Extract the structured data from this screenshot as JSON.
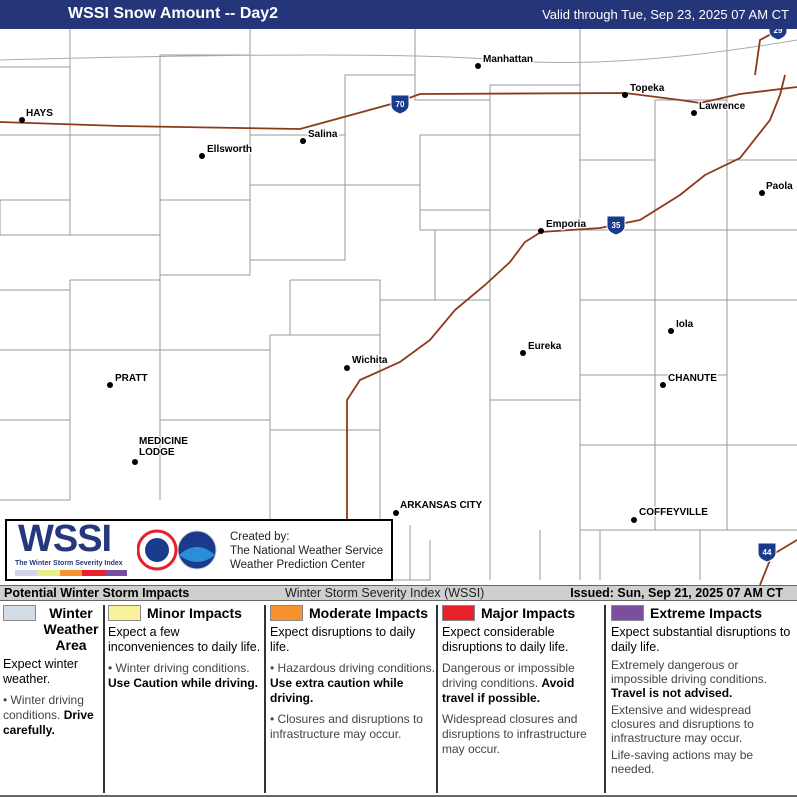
{
  "header": {
    "title": "WSSI Snow Amount -- Day2",
    "valid": "Valid through Tue, Sep 23, 2025 07 AM CT"
  },
  "map": {
    "cities": [
      "HAYS",
      "Ellsworth",
      "Salina",
      "Manhattan",
      "Topeka",
      "Lawrence",
      "Paola",
      "Emporia",
      "Iola",
      "Eureka",
      "Wichita",
      "PRATT",
      "CHANUTE",
      "MEDICINE LODGE",
      "ARKANSAS CITY",
      "COFFEYVILLE"
    ],
    "interstates": [
      "70",
      "35",
      "29",
      "44"
    ],
    "highway_color": "#8b3a1a"
  },
  "logo": {
    "wssi": "WSSI",
    "subtitle": "The Winter Storm Severity Index",
    "created_by": "Created by:",
    "org1": "The National Weather Service",
    "org2": "Weather Prediction Center"
  },
  "legend_bar": {
    "title": "Potential Winter Storm Impacts",
    "index": "Winter Storm Severity Index (WSSI)",
    "issued": "Issued: Sun, Sep 21, 2025 07 AM CT"
  },
  "legend": [
    {
      "name": "Winter Weather Area",
      "color": "#d4dde6",
      "desc": "Expect winter weather.",
      "bullets": [
        {
          "text": "Winter driving conditions. ",
          "bold": "Drive carefully."
        }
      ]
    },
    {
      "name": "Minor Impacts",
      "color": "#f8f39a",
      "desc": "Expect a few inconveniences to daily life.",
      "bullets": [
        {
          "text": "Winter driving conditions. ",
          "bold": "Use Caution while driving."
        }
      ]
    },
    {
      "name": "Moderate Impacts",
      "color": "#f7922f",
      "desc": "Expect disruptions to daily life.",
      "bullets": [
        {
          "text": "Hazardous driving conditions. ",
          "bold": "Use extra caution while driving."
        },
        {
          "text": "Closures and disruptions to infrastructure may occur.",
          "bold": ""
        }
      ]
    },
    {
      "name": "Major Impacts",
      "color": "#e8202a",
      "desc": "Expect considerable disruptions to daily life.",
      "bullets": [
        {
          "text": "Dangerous or impossible driving conditions. ",
          "bold": "Avoid travel if possible."
        },
        {
          "text": "Widespread closures and disruptions to infrastructure may occur.",
          "bold": ""
        }
      ]
    },
    {
      "name": "Extreme Impacts",
      "color": "#7b4fa0",
      "desc": "Expect substantial disruptions to daily life.",
      "bullets": [
        {
          "text": "Extremely dangerous or impossible driving conditions. ",
          "bold": "Travel is not advised."
        },
        {
          "text": "Extensive and widespread closures and disruptions to infrastructure may occur.",
          "bold": ""
        },
        {
          "text": "Life-saving actions may be needed.",
          "bold": ""
        }
      ]
    }
  ]
}
